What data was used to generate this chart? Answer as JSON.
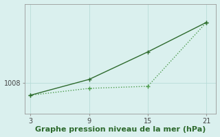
{
  "x": [
    3,
    9,
    15,
    21
  ],
  "line1_y": [
    1006.2,
    1008.5,
    1012.5,
    1016.8
  ],
  "line2_y": [
    1006.2,
    1007.2,
    1007.5,
    1016.8
  ],
  "line1_color": "#2d6a2d",
  "line2_color": "#4a9a4a",
  "line1_style": "-",
  "line2_style": "dotted",
  "line_width": 1.0,
  "marker": "+",
  "marker_size": 5,
  "xlabel": "Graphe pression niveau de la mer (hPa)",
  "xlabel_fontsize": 8,
  "xlabel_color": "#2d6a2d",
  "ytick_labels": [
    "1008"
  ],
  "ytick_values": [
    1008
  ],
  "xtick_values": [
    3,
    9,
    15,
    21
  ],
  "xlim": [
    2.4,
    22.0
  ],
  "ylim": [
    1003.5,
    1019.5
  ],
  "bg_color": "#daf0ee",
  "grid_color": "#b8dcd8",
  "grid_lw": 0.6,
  "tick_fontsize": 7,
  "tick_color": "#444444"
}
